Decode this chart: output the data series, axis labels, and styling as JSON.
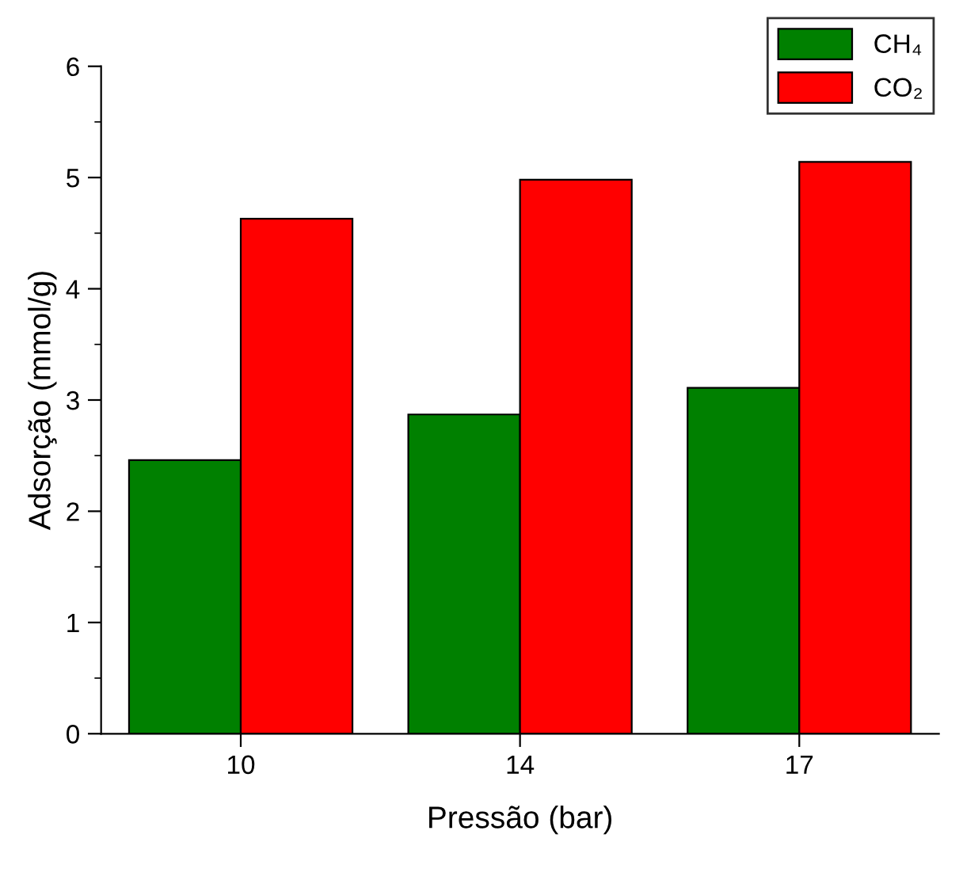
{
  "chart_data": {
    "type": "bar",
    "xlabel": "Pressão (bar)",
    "ylabel": "Adsorção (mmol/g)",
    "categories": [
      "10",
      "14",
      "17"
    ],
    "series": [
      {
        "name": "CH₄",
        "color": "#008000",
        "values": [
          2.46,
          2.87,
          3.11
        ]
      },
      {
        "name": "CO₂",
        "color": "#ff0000",
        "values": [
          4.63,
          4.98,
          5.14
        ]
      }
    ],
    "ylim": [
      0,
      6
    ],
    "yticks": [
      0,
      {
        "value": 0.5,
        "label": null
      },
      1,
      {
        "value": 1.5,
        "label": null
      },
      2,
      {
        "value": 2.5,
        "label": null
      },
      3,
      {
        "value": 3.5,
        "label": null
      },
      4,
      {
        "value": 4.5,
        "label": null
      },
      5,
      {
        "value": 5.5,
        "label": null
      },
      6
    ],
    "grid": false,
    "legend": "top right"
  }
}
